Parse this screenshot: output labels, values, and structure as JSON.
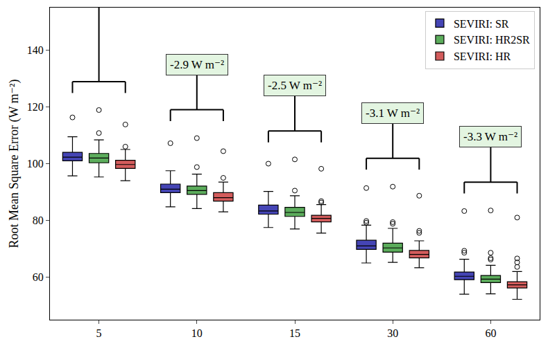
{
  "chart_data": {
    "type": "box",
    "y_label": "Root Mean Square Error (W m⁻²)",
    "categories": [
      "5",
      "10",
      "15",
      "30",
      "60"
    ],
    "ylim": [
      45,
      155
    ],
    "yticks": [
      60,
      80,
      100,
      120,
      140
    ],
    "grid": false,
    "legend": "upper right",
    "series": [
      {
        "name": "SEVIRI: SR",
        "color": "#4545b5",
        "q1": [
          101.0,
          89.8,
          82.2,
          69.8,
          59.1
        ],
        "median": [
          102.3,
          91.0,
          83.3,
          71.0,
          60.3
        ],
        "q3": [
          104.0,
          92.8,
          85.4,
          73.0,
          61.8
        ],
        "lowerfence": [
          95.7,
          84.8,
          77.5,
          65.0,
          54.0
        ],
        "upperfence": [
          109.5,
          97.5,
          90.2,
          78.3,
          66.3
        ],
        "outliers": [
          [
            116.3
          ],
          [
            107.2
          ],
          [
            100.0
          ],
          [
            79.2,
            79.8,
            91.4
          ],
          [
            68.6,
            69.3,
            83.3
          ]
        ]
      },
      {
        "name": "SEVIRI: HR2SR",
        "color": "#5cad5c",
        "q1": [
          100.3,
          89.2,
          81.4,
          68.8,
          58.1
        ],
        "median": [
          102.0,
          90.5,
          82.8,
          70.3,
          59.3
        ],
        "q3": [
          103.6,
          92.1,
          84.6,
          72.0,
          60.6
        ],
        "lowerfence": [
          95.3,
          84.2,
          77.0,
          65.2,
          54.1
        ],
        "upperfence": [
          108.4,
          96.3,
          88.7,
          77.2,
          64.2
        ],
        "outliers": [
          [
            110.8,
            118.9
          ],
          [
            98.8,
            109.0
          ],
          [
            90.5,
            101.5
          ],
          [
            78.8,
            79.4,
            91.9
          ],
          [
            66.2,
            66.7,
            68.6,
            83.5
          ]
        ]
      },
      {
        "name": "SEVIRI: HR",
        "color": "#d35c5c",
        "q1": [
          98.3,
          86.8,
          79.5,
          66.8,
          56.2
        ],
        "median": [
          99.7,
          88.0,
          80.7,
          68.0,
          57.3
        ],
        "q3": [
          101.2,
          89.8,
          81.8,
          69.4,
          58.4
        ],
        "lowerfence": [
          94.0,
          83.0,
          75.5,
          63.3,
          52.2
        ],
        "upperfence": [
          105.0,
          93.5,
          85.6,
          72.8,
          62.0
        ],
        "outliers": [
          [
            106.0,
            113.8
          ],
          [
            95.0,
            104.4
          ],
          [
            86.3,
            86.8,
            98.2
          ],
          [
            75.6,
            76.3,
            88.7
          ],
          [
            63.6,
            65.2,
            66.6,
            81.0
          ]
        ]
      }
    ],
    "annotations": [
      {
        "category": "10",
        "text": "-2.9 W m⁻²"
      },
      {
        "category": "15",
        "text": "-2.5 W m⁻²"
      },
      {
        "category": "30",
        "text": "-3.1 W m⁻²"
      },
      {
        "category": "60",
        "text": "-3.3 W m⁻²"
      }
    ]
  }
}
